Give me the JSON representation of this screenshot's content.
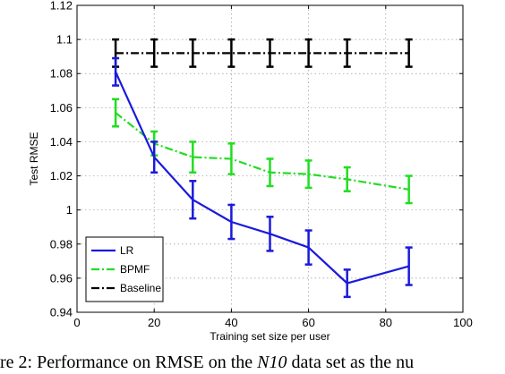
{
  "chart_data": {
    "type": "line",
    "title": "",
    "xlabel": "Training set size per user",
    "ylabel": "Test RMSE",
    "xlim": [
      0,
      100
    ],
    "ylim": [
      0.94,
      1.12
    ],
    "x_ticks": [
      0,
      20,
      40,
      60,
      80,
      100
    ],
    "y_ticks": [
      0.94,
      0.96,
      0.98,
      1,
      1.02,
      1.04,
      1.06,
      1.08,
      1.1,
      1.12
    ],
    "y_tick_labels": [
      "0.94",
      "0.96",
      "0.98",
      "1",
      "1.02",
      "1.04",
      "1.06",
      "1.08",
      "1.1",
      "1.12"
    ],
    "grid": true,
    "legend_position": "bottom-left",
    "x": [
      10,
      20,
      30,
      40,
      50,
      60,
      70,
      86
    ],
    "series": [
      {
        "name": "LR",
        "color": "#1a1adb",
        "style": "solid",
        "values": [
          1.081,
          1.031,
          1.006,
          0.993,
          0.986,
          0.978,
          0.957,
          0.967
        ],
        "err": [
          0.008,
          0.009,
          0.011,
          0.01,
          0.01,
          0.01,
          0.008,
          0.011
        ]
      },
      {
        "name": "BPMF",
        "color": "#22dd22",
        "style": "dashdot",
        "values": [
          1.057,
          1.039,
          1.031,
          1.03,
          1.022,
          1.021,
          1.018,
          1.012
        ],
        "err": [
          0.008,
          0.007,
          0.009,
          0.009,
          0.008,
          0.008,
          0.007,
          0.008
        ]
      },
      {
        "name": "Baseline",
        "color": "#000000",
        "style": "dashdot",
        "values": [
          1.092,
          1.092,
          1.092,
          1.092,
          1.092,
          1.092,
          1.092,
          1.092
        ],
        "err": [
          0.008,
          0.008,
          0.008,
          0.008,
          0.008,
          0.008,
          0.008,
          0.008
        ]
      }
    ]
  },
  "caption": {
    "prefix": "re 2:  Performance on RMSE on the ",
    "italic": "N10",
    "suffix": " data set as the nu"
  }
}
